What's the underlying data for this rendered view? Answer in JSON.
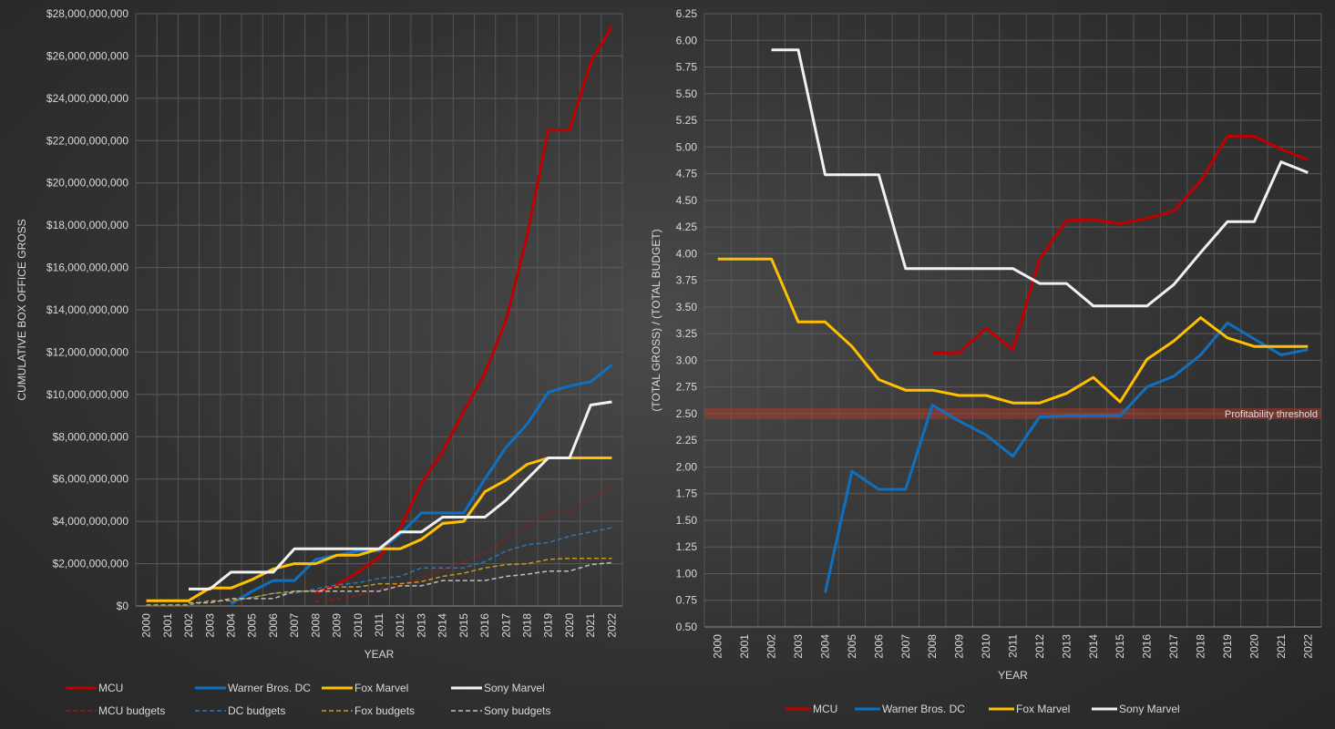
{
  "chart_data": [
    {
      "type": "line",
      "title": "",
      "xlabel": "YEAR",
      "ylabel": "CUMULATIVE BOX OFFICE GROSS",
      "ylim": [
        0,
        28000000000
      ],
      "ytick_labels": [
        "$0",
        "$2,000,000,000",
        "$4,000,000,000",
        "$6,000,000,000",
        "$8,000,000,000",
        "$10,000,000,000",
        "$12,000,000,000",
        "$14,000,000,000",
        "$16,000,000,000",
        "$18,000,000,000",
        "$20,000,000,000",
        "$22,000,000,000",
        "$24,000,000,000",
        "$26,000,000,000",
        "$28,000,000,000"
      ],
      "categories": [
        "2000",
        "2001",
        "2002",
        "2003",
        "2004",
        "2005",
        "2006",
        "2007",
        "2008",
        "2009",
        "2010",
        "2011",
        "2012",
        "2013",
        "2014",
        "2015",
        "2016",
        "2017",
        "2018",
        "2019",
        "2020",
        "2021",
        "2022"
      ],
      "grid": true,
      "legend_position": "bottom",
      "series": [
        {
          "name": "MCU",
          "color": "#c00000",
          "dash": "solid",
          "values": [
            null,
            null,
            null,
            null,
            null,
            null,
            null,
            null,
            600000000,
            1000000000,
            1600000000,
            2300000000,
            3700000000,
            5800000000,
            7300000000,
            9200000000,
            11000000000,
            13500000000,
            17500000000,
            22500000000,
            22500000000,
            25700000000,
            27400000000
          ]
        },
        {
          "name": "Warner Bros. DC",
          "color": "#0f70c0",
          "dash": "solid",
          "values": [
            null,
            null,
            null,
            null,
            100000000,
            700000000,
            1200000000,
            1200000000,
            2200000000,
            2400000000,
            2600000000,
            2600000000,
            3400000000,
            4400000000,
            4400000000,
            4400000000,
            6000000000,
            7500000000,
            8600000000,
            10100000000,
            10400000000,
            10600000000,
            11400000000
          ]
        },
        {
          "name": "Fox Marvel",
          "color": "#ffc000",
          "dash": "solid",
          "values": [
            250000000,
            250000000,
            250000000,
            850000000,
            850000000,
            1250000000,
            1750000000,
            2000000000,
            2000000000,
            2400000000,
            2400000000,
            2700000000,
            2700000000,
            3150000000,
            3900000000,
            4000000000,
            5400000000,
            5950000000,
            6700000000,
            7000000000,
            7000000000,
            7000000000,
            7000000000
          ]
        },
        {
          "name": "Sony Marvel",
          "color": "#f2f2f2",
          "dash": "solid",
          "values": [
            null,
            null,
            800000000,
            800000000,
            1600000000,
            1600000000,
            1600000000,
            2700000000,
            2700000000,
            2700000000,
            2700000000,
            2700000000,
            3500000000,
            3500000000,
            4200000000,
            4200000000,
            4200000000,
            5000000000,
            6000000000,
            7000000000,
            7000000000,
            9500000000,
            9650000000
          ]
        },
        {
          "name": "MCU budgets",
          "color": "#8b2020",
          "dash": "dashed",
          "values": [
            null,
            null,
            null,
            null,
            null,
            null,
            null,
            null,
            200000000,
            300000000,
            500000000,
            800000000,
            1000000000,
            1300000000,
            1700000000,
            2100000000,
            2500000000,
            3200000000,
            3800000000,
            4400000000,
            4400000000,
            5100000000,
            5600000000
          ]
        },
        {
          "name": "DC budgets",
          "color": "#2e75b6",
          "dash": "dashed",
          "values": [
            null,
            null,
            null,
            null,
            200000000,
            400000000,
            600000000,
            600000000,
            800000000,
            1000000000,
            1100000000,
            1300000000,
            1400000000,
            1800000000,
            1800000000,
            1800000000,
            2100000000,
            2600000000,
            2900000000,
            3000000000,
            3300000000,
            3500000000,
            3700000000
          ]
        },
        {
          "name": "Fox budgets",
          "color": "#c59a18",
          "dash": "dashed",
          "values": [
            50000000,
            50000000,
            50000000,
            250000000,
            250000000,
            400000000,
            600000000,
            700000000,
            700000000,
            900000000,
            900000000,
            1050000000,
            1050000000,
            1150000000,
            1400000000,
            1550000000,
            1800000000,
            1950000000,
            2000000000,
            2200000000,
            2250000000,
            2250000000,
            2250000000
          ]
        },
        {
          "name": "Sony budgets",
          "color": "#bfbfbf",
          "dash": "dashed",
          "values": [
            null,
            null,
            150000000,
            150000000,
            350000000,
            350000000,
            350000000,
            700000000,
            700000000,
            700000000,
            700000000,
            700000000,
            950000000,
            950000000,
            1200000000,
            1200000000,
            1200000000,
            1400000000,
            1500000000,
            1650000000,
            1650000000,
            1950000000,
            2050000000
          ]
        }
      ]
    },
    {
      "type": "line",
      "title": "",
      "xlabel": "YEAR",
      "ylabel": "(TOTAL GROSS) / (TOTAL BUDGET)",
      "ylim": [
        0.5,
        6.25
      ],
      "ytick_labels": [
        "0.50",
        "0.75",
        "1.00",
        "1.25",
        "1.50",
        "1.75",
        "2.00",
        "2.25",
        "2.50",
        "2.75",
        "3.00",
        "3.25",
        "3.50",
        "3.75",
        "4.00",
        "4.25",
        "4.50",
        "4.75",
        "5.00",
        "5.25",
        "5.50",
        "5.75",
        "6.00",
        "6.25"
      ],
      "categories": [
        "2000",
        "2001",
        "2002",
        "2003",
        "2004",
        "2005",
        "2006",
        "2007",
        "2008",
        "2009",
        "2010",
        "2011",
        "2012",
        "2013",
        "2014",
        "2015",
        "2016",
        "2017",
        "2018",
        "2019",
        "2020",
        "2021",
        "2022"
      ],
      "grid": true,
      "legend_position": "bottom",
      "threshold": {
        "label": "Profitability threshold",
        "value": 2.5,
        "color": "#c0392b"
      },
      "series": [
        {
          "name": "MCU",
          "color": "#c00000",
          "values": [
            null,
            null,
            null,
            null,
            null,
            null,
            null,
            null,
            3.07,
            3.07,
            3.3,
            3.1,
            3.95,
            4.31,
            4.32,
            4.28,
            4.33,
            4.4,
            4.68,
            5.1,
            5.1,
            4.98,
            4.88
          ]
        },
        {
          "name": "Warner Bros. DC",
          "color": "#0f70c0",
          "values": [
            null,
            null,
            null,
            null,
            0.82,
            1.96,
            1.79,
            1.79,
            2.58,
            2.43,
            2.3,
            2.1,
            2.47,
            2.48,
            2.48,
            2.48,
            2.75,
            2.85,
            3.05,
            3.35,
            3.2,
            3.05,
            3.1
          ]
        },
        {
          "name": "Fox Marvel",
          "color": "#ffc000",
          "values": [
            3.95,
            3.95,
            3.95,
            3.36,
            3.36,
            3.13,
            2.82,
            2.72,
            2.72,
            2.67,
            2.67,
            2.6,
            2.6,
            2.69,
            2.84,
            2.61,
            3.01,
            3.18,
            3.4,
            3.21,
            3.13,
            3.13,
            3.13
          ]
        },
        {
          "name": "Sony Marvel",
          "color": "#f2f2f2",
          "values": [
            null,
            null,
            5.91,
            5.91,
            4.74,
            4.74,
            4.74,
            3.86,
            3.86,
            3.86,
            3.86,
            3.86,
            3.72,
            3.72,
            3.51,
            3.51,
            3.51,
            3.71,
            4.01,
            4.3,
            4.3,
            4.86,
            4.76
          ]
        }
      ]
    }
  ]
}
